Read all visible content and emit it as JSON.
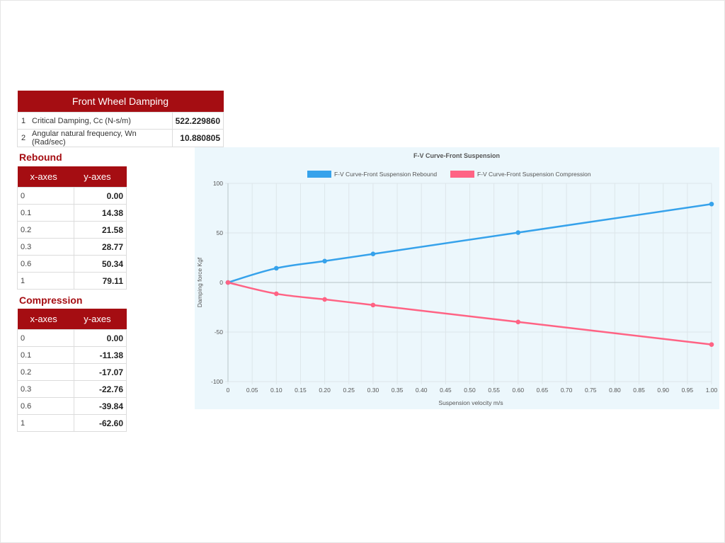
{
  "damping": {
    "title": "Front Wheel Damping",
    "rows": [
      {
        "num": "1",
        "label": "Critical Damping, Cc (N-s/m)",
        "value": "522.229860"
      },
      {
        "num": "2",
        "label": "Angular natural frequency, Wn (Rad/sec)",
        "value": "10.880805"
      }
    ]
  },
  "rebound": {
    "title": "Rebound",
    "headers": [
      "x-axes",
      "y-axes"
    ],
    "rows": [
      [
        "0",
        "0.00"
      ],
      [
        "0.1",
        "14.38"
      ],
      [
        "0.2",
        "21.58"
      ],
      [
        "0.3",
        "28.77"
      ],
      [
        "0.6",
        "50.34"
      ],
      [
        "1",
        "79.11"
      ]
    ]
  },
  "compression": {
    "title": "Compression",
    "headers": [
      "x-axes",
      "y-axes"
    ],
    "rows": [
      [
        "0",
        "0.00"
      ],
      [
        "0.1",
        "-11.38"
      ],
      [
        "0.2",
        "-17.07"
      ],
      [
        "0.3",
        "-22.76"
      ],
      [
        "0.6",
        "-39.84"
      ],
      [
        "1",
        "-62.60"
      ]
    ]
  },
  "chart_data": {
    "type": "line",
    "title": "F-V Curve-Front Suspension",
    "xlabel": "Suspension velocity m/s",
    "ylabel": "Damping force Kgf",
    "xlim": [
      0,
      1
    ],
    "ylim": [
      -100,
      100
    ],
    "xticks": [
      "0",
      "0.05",
      "0.10",
      "0.15",
      "0.20",
      "0.25",
      "0.30",
      "0.35",
      "0.40",
      "0.45",
      "0.50",
      "0.55",
      "0.60",
      "0.65",
      "0.70",
      "0.75",
      "0.80",
      "0.85",
      "0.90",
      "0.95",
      "1.00"
    ],
    "yticks": [
      "100",
      "50",
      "0",
      "-50",
      "-100"
    ],
    "grid": true,
    "legend_position": "top",
    "series": [
      {
        "name": "F-V Curve-Front Suspension Rebound",
        "color": "#36a2eb",
        "x": [
          0,
          0.1,
          0.2,
          0.3,
          0.6,
          1
        ],
        "y": [
          0,
          14.38,
          21.58,
          28.77,
          50.34,
          79.11
        ]
      },
      {
        "name": "F-V Curve-Front Suspension Compression",
        "color": "#ff6384",
        "x": [
          0,
          0.1,
          0.2,
          0.3,
          0.6,
          1
        ],
        "y": [
          0,
          -11.38,
          -17.07,
          -22.76,
          -39.84,
          -62.6
        ]
      }
    ]
  }
}
